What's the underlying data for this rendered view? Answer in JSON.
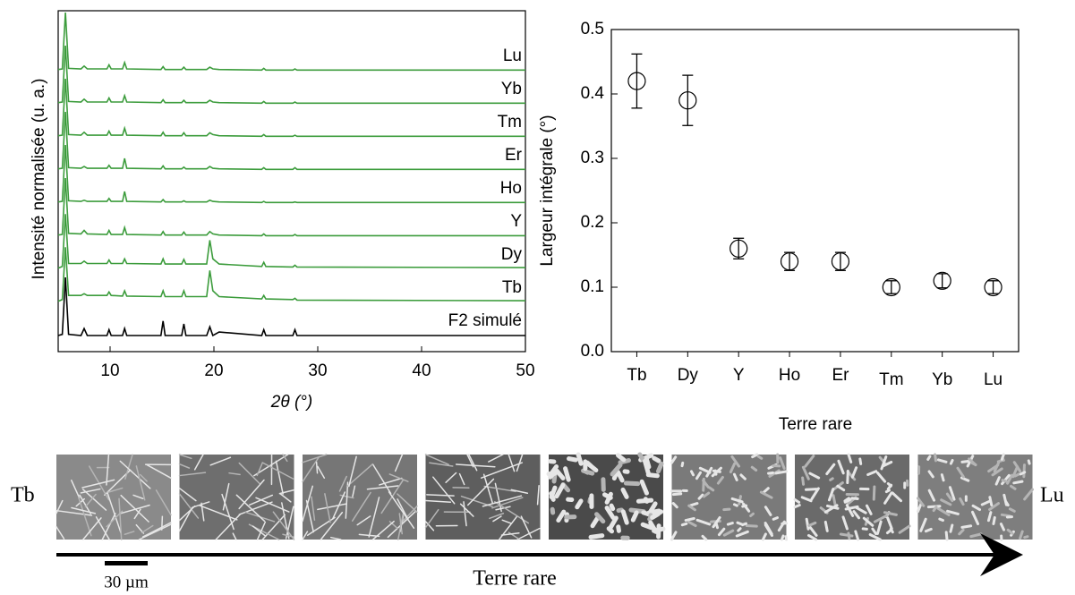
{
  "chart_data": [
    {
      "type": "line",
      "xlabel": "2θ (°)",
      "ylabel": "Intensité normalisée (u. a.)",
      "xlim": [
        5,
        50
      ],
      "xticks": [
        10,
        20,
        30,
        40,
        50
      ],
      "ylim": [
        0,
        1
      ],
      "x": [
        5,
        5.4,
        5.7,
        6.0,
        7.2,
        7.5,
        7.8,
        9.7,
        9.9,
        10.1,
        11.2,
        11.4,
        11.6,
        14.9,
        15.1,
        15.3,
        16.9,
        17.1,
        17.3,
        19.3,
        19.6,
        19.9,
        20.5,
        24.6,
        24.8,
        25.0,
        27.6,
        27.8,
        28.0,
        50
      ],
      "series": [
        {
          "name": "F2 simulé",
          "color": "#000000",
          "values": [
            0,
            0.02,
            1,
            0.02,
            0,
            0.12,
            0,
            0,
            0.1,
            0,
            0,
            0.12,
            0,
            0,
            0.25,
            0,
            0,
            0.2,
            0,
            0,
            0.15,
            0,
            0.06,
            0,
            0.1,
            0,
            0,
            0.1,
            0,
            0
          ]
        },
        {
          "name": "Tb",
          "color": "#3c9c3c",
          "values": [
            0.02,
            0.05,
            0.95,
            0.12,
            0.12,
            0.15,
            0.12,
            0.12,
            0.18,
            0.12,
            0.11,
            0.2,
            0.11,
            0.1,
            0.2,
            0.1,
            0.1,
            0.2,
            0.1,
            0.1,
            0.55,
            0.2,
            0.1,
            0.06,
            0.12,
            0.06,
            0.05,
            0.07,
            0.04,
            0.03
          ]
        },
        {
          "name": "Dy",
          "color": "#3c9c3c",
          "values": [
            0.02,
            0.05,
            0.95,
            0.1,
            0.1,
            0.14,
            0.1,
            0.1,
            0.16,
            0.1,
            0.1,
            0.18,
            0.1,
            0.09,
            0.18,
            0.09,
            0.09,
            0.17,
            0.09,
            0.09,
            0.5,
            0.18,
            0.09,
            0.05,
            0.12,
            0.05,
            0.04,
            0.07,
            0.04,
            0.03
          ]
        },
        {
          "name": "Y",
          "color": "#3c9c3c",
          "values": [
            0.02,
            0.03,
            1,
            0.05,
            0.04,
            0.1,
            0.04,
            0.03,
            0.1,
            0.03,
            0.03,
            0.15,
            0.03,
            0.02,
            0.08,
            0.02,
            0.02,
            0.07,
            0.02,
            0.02,
            0.08,
            0.04,
            0.02,
            0.01,
            0.04,
            0.01,
            0.01,
            0.03,
            0.01,
            0.01
          ]
        },
        {
          "name": "Ho",
          "color": "#3c9c3c",
          "values": [
            0.02,
            0.03,
            1,
            0.04,
            0.03,
            0.05,
            0.03,
            0.03,
            0.08,
            0.03,
            0.03,
            0.2,
            0.03,
            0.02,
            0.06,
            0.02,
            0.02,
            0.04,
            0.02,
            0.02,
            0.05,
            0.03,
            0.02,
            0.01,
            0.03,
            0.01,
            0.01,
            0.02,
            0.01,
            0.01
          ]
        },
        {
          "name": "Er",
          "color": "#3c9c3c",
          "values": [
            0.02,
            0.03,
            1,
            0.04,
            0.03,
            0.06,
            0.03,
            0.03,
            0.08,
            0.03,
            0.03,
            0.2,
            0.03,
            0.02,
            0.07,
            0.02,
            0.02,
            0.05,
            0.02,
            0.02,
            0.06,
            0.03,
            0.02,
            0.01,
            0.04,
            0.01,
            0.01,
            0.04,
            0.01,
            0.01
          ]
        },
        {
          "name": "Tm",
          "color": "#3c9c3c",
          "values": [
            0.02,
            0.03,
            1,
            0.04,
            0.03,
            0.08,
            0.03,
            0.03,
            0.1,
            0.03,
            0.03,
            0.15,
            0.03,
            0.02,
            0.08,
            0.02,
            0.02,
            0.07,
            0.02,
            0.02,
            0.07,
            0.04,
            0.02,
            0.01,
            0.04,
            0.01,
            0.01,
            0.03,
            0.01,
            0.01
          ]
        },
        {
          "name": "Yb",
          "color": "#3c9c3c",
          "values": [
            0.02,
            0.03,
            1,
            0.04,
            0.03,
            0.08,
            0.03,
            0.03,
            0.1,
            0.03,
            0.03,
            0.14,
            0.03,
            0.02,
            0.07,
            0.02,
            0.02,
            0.06,
            0.02,
            0.02,
            0.06,
            0.03,
            0.02,
            0.01,
            0.04,
            0.01,
            0.01,
            0.03,
            0.01,
            0.01
          ]
        },
        {
          "name": "Lu",
          "color": "#3c9c3c",
          "values": [
            0.02,
            0.03,
            1,
            0.04,
            0.03,
            0.08,
            0.03,
            0.03,
            0.1,
            0.03,
            0.03,
            0.14,
            0.03,
            0.02,
            0.07,
            0.02,
            0.02,
            0.06,
            0.02,
            0.02,
            0.06,
            0.03,
            0.02,
            0.01,
            0.04,
            0.01,
            0.01,
            0.03,
            0.01,
            0.01
          ]
        }
      ]
    },
    {
      "type": "errorbar",
      "xlabel": "Terre rare",
      "ylabel": "Largeur intégrale (°)",
      "categories": [
        "Tb",
        "Dy",
        "Y",
        "Ho",
        "Er",
        "Tm",
        "Yb",
        "Lu"
      ],
      "values": [
        0.42,
        0.39,
        0.16,
        0.14,
        0.14,
        0.1,
        0.11,
        0.1
      ],
      "errors": [
        0.042,
        0.039,
        0.016,
        0.014,
        0.014,
        0.01,
        0.011,
        0.01
      ],
      "color": "#000000",
      "ylim": [
        0,
        0.5
      ],
      "yticks": [
        {
          "value": 0,
          "label": "0.0"
        },
        0.1,
        0.2,
        0.3,
        0.4,
        0.5
      ]
    }
  ],
  "strip": {
    "start": "Tb",
    "end": "Lu",
    "axis_label": "Terre rare",
    "scale_bar": "30 µm"
  }
}
